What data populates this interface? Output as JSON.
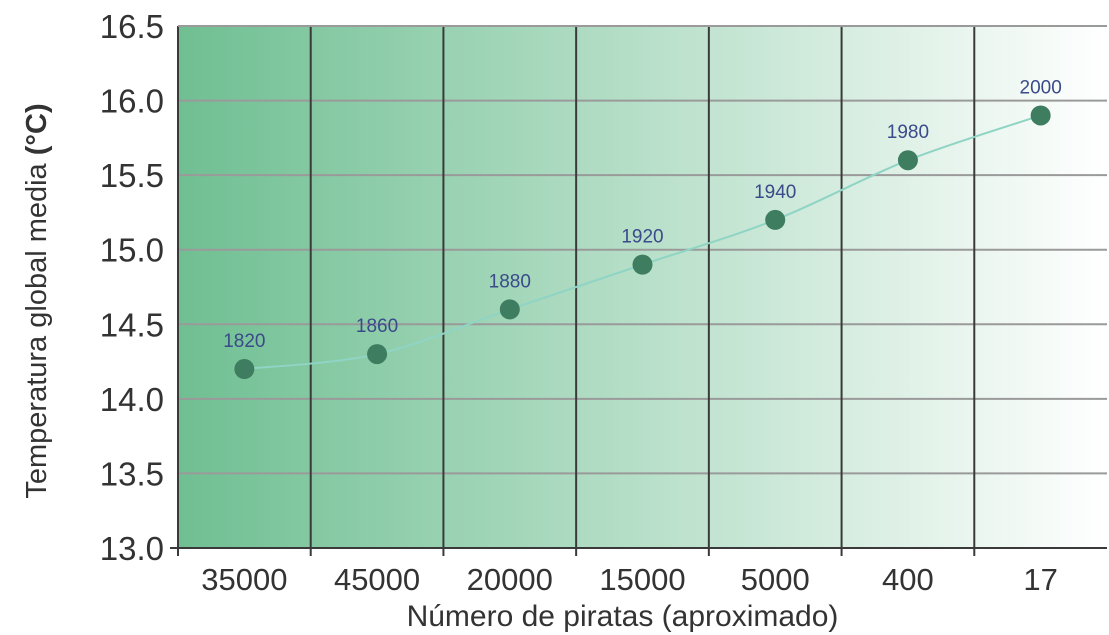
{
  "chart_data": {
    "type": "line",
    "title": "",
    "xlabel": "Número de piratas (aproximado)",
    "ylabel_main": "Temperatura global media ",
    "ylabel_unit": "(°C)",
    "categories": [
      "35000",
      "45000",
      "20000",
      "15000",
      "5000",
      "400",
      "17"
    ],
    "series": [
      {
        "values": [
          14.2,
          14.3,
          14.6,
          14.9,
          15.2,
          15.6,
          15.9
        ],
        "point_labels": [
          "1820",
          "1860",
          "1880",
          "1920",
          "1940",
          "1980",
          "2000"
        ]
      }
    ],
    "ylim": [
      13.0,
      16.5
    ],
    "y_ticks": [
      "13.0",
      "13.5",
      "14.0",
      "14.5",
      "15.0",
      "15.5",
      "16.0",
      "16.5"
    ],
    "grid": true,
    "legend": "none",
    "colors": {
      "background_gradient_start": "#6fbf92",
      "background_gradient_end": "#ffffff",
      "grid_dark": "#3a3a3a",
      "grid_light": "#9a9a9a",
      "marker": "#3e7d60",
      "line": "#8fd4c4",
      "point_label": "#3b4a8a",
      "text": "#333333"
    }
  }
}
